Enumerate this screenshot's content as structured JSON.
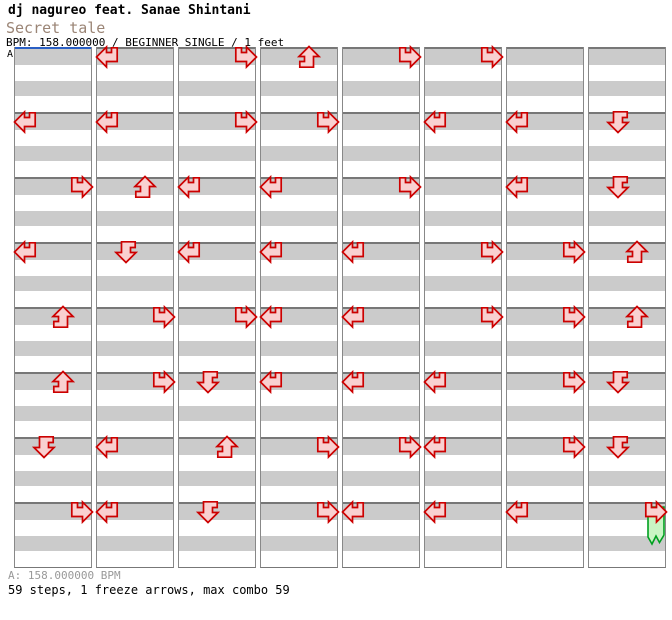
{
  "header": {
    "artist": "dj nagureo feat. Sanae Shintani",
    "title": "Secret tale",
    "info": "BPM: 158.000000 / BEGINNER SINGLE / 1 feet"
  },
  "marker": {
    "label": "A"
  },
  "footer": {
    "bpm_line": "A: 158.000000 BPM",
    "stats_line": "59 steps, 1 freeze arrows, max combo 59"
  },
  "colors": {
    "note_fill": "#f9d0d0",
    "note_stroke": "#cc0000",
    "freeze_fill": "#c9f5c4",
    "freeze_stroke": "#00a020",
    "beat_row_gray": "#cbcbcb",
    "measure_line": "#777777",
    "start_marker_line": "#2a5fc4",
    "title_color": "#9b8576",
    "footnote_gray": "#999999"
  },
  "chart_data": {
    "type": "ddr-stepchart",
    "title": "Secret tale",
    "artist": "dj nagureo feat. Sanae Shintani",
    "bpm": 158.0,
    "difficulty": "BEGINNER SINGLE",
    "feet": 1,
    "steps": 59,
    "freeze_arrows": 1,
    "max_combo": 59,
    "lanes": [
      "left",
      "down",
      "up",
      "right"
    ],
    "rows_per_measure": 4,
    "measures_per_column": 8,
    "columns": [
      {
        "measures": [
          [],
          [
            {
              "dir": "left",
              "beat": 0
            }
          ],
          [
            {
              "dir": "right",
              "beat": 0
            }
          ],
          [
            {
              "dir": "left",
              "beat": 0
            }
          ],
          [
            {
              "dir": "up",
              "beat": 0
            }
          ],
          [
            {
              "dir": "up",
              "beat": 0
            }
          ],
          [
            {
              "dir": "down",
              "beat": 0
            }
          ],
          [
            {
              "dir": "right",
              "beat": 0
            }
          ]
        ]
      },
      {
        "measures": [
          [
            {
              "dir": "left",
              "beat": 0
            }
          ],
          [
            {
              "dir": "left",
              "beat": 0
            }
          ],
          [
            {
              "dir": "up",
              "beat": 0
            }
          ],
          [
            {
              "dir": "down",
              "beat": 0
            }
          ],
          [
            {
              "dir": "right",
              "beat": 0
            }
          ],
          [
            {
              "dir": "right",
              "beat": 0
            }
          ],
          [
            {
              "dir": "left",
              "beat": 0
            }
          ],
          [
            {
              "dir": "left",
              "beat": 0
            }
          ]
        ]
      },
      {
        "measures": [
          [
            {
              "dir": "right",
              "beat": 0
            }
          ],
          [
            {
              "dir": "right",
              "beat": 0
            }
          ],
          [
            {
              "dir": "left",
              "beat": 0
            }
          ],
          [
            {
              "dir": "left",
              "beat": 0
            }
          ],
          [
            {
              "dir": "right",
              "beat": 0
            }
          ],
          [
            {
              "dir": "down",
              "beat": 0
            }
          ],
          [
            {
              "dir": "up",
              "beat": 0
            }
          ],
          [
            {
              "dir": "down",
              "beat": 0
            }
          ]
        ]
      },
      {
        "measures": [
          [
            {
              "dir": "up",
              "beat": 0
            }
          ],
          [
            {
              "dir": "right",
              "beat": 0
            }
          ],
          [
            {
              "dir": "left",
              "beat": 0
            }
          ],
          [
            {
              "dir": "left",
              "beat": 0
            }
          ],
          [
            {
              "dir": "left",
              "beat": 0
            }
          ],
          [
            {
              "dir": "left",
              "beat": 0
            }
          ],
          [
            {
              "dir": "right",
              "beat": 0
            }
          ],
          [
            {
              "dir": "right",
              "beat": 0
            }
          ]
        ]
      },
      {
        "measures": [
          [
            {
              "dir": "right",
              "beat": 0
            }
          ],
          [],
          [
            {
              "dir": "right",
              "beat": 0
            }
          ],
          [
            {
              "dir": "left",
              "beat": 0
            }
          ],
          [
            {
              "dir": "left",
              "beat": 0
            }
          ],
          [
            {
              "dir": "left",
              "beat": 0
            }
          ],
          [
            {
              "dir": "right",
              "beat": 0
            }
          ],
          [
            {
              "dir": "left",
              "beat": 0
            }
          ]
        ]
      },
      {
        "measures": [
          [
            {
              "dir": "right",
              "beat": 0
            }
          ],
          [
            {
              "dir": "left",
              "beat": 0
            }
          ],
          [],
          [
            {
              "dir": "right",
              "beat": 0
            }
          ],
          [
            {
              "dir": "right",
              "beat": 0
            }
          ],
          [
            {
              "dir": "left",
              "beat": 0
            }
          ],
          [
            {
              "dir": "left",
              "beat": 0
            }
          ],
          [
            {
              "dir": "left",
              "beat": 0
            }
          ]
        ]
      },
      {
        "measures": [
          [],
          [
            {
              "dir": "left",
              "beat": 0
            }
          ],
          [
            {
              "dir": "left",
              "beat": 0
            }
          ],
          [
            {
              "dir": "right",
              "beat": 0
            }
          ],
          [
            {
              "dir": "right",
              "beat": 0
            }
          ],
          [
            {
              "dir": "right",
              "beat": 0
            }
          ],
          [
            {
              "dir": "right",
              "beat": 0
            }
          ],
          [
            {
              "dir": "left",
              "beat": 0
            }
          ]
        ]
      },
      {
        "measures": [
          [],
          [
            {
              "dir": "down",
              "beat": 0
            }
          ],
          [
            {
              "dir": "down",
              "beat": 0
            }
          ],
          [
            {
              "dir": "up",
              "beat": 0
            }
          ],
          [
            {
              "dir": "up",
              "beat": 0
            }
          ],
          [
            {
              "dir": "down",
              "beat": 0
            }
          ],
          [
            {
              "dir": "down",
              "beat": 0
            }
          ],
          [
            {
              "dir": "right",
              "beat": 0,
              "freeze": true
            }
          ]
        ]
      }
    ]
  }
}
